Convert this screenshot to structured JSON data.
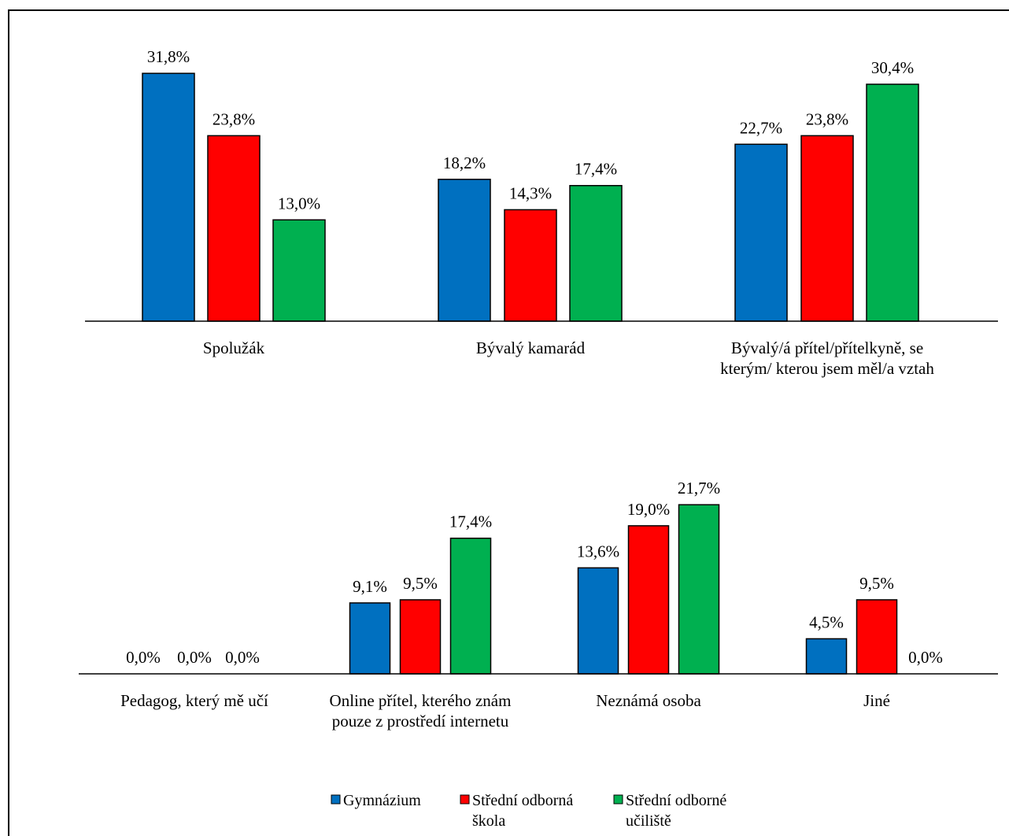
{
  "chart_data": {
    "type": "bar",
    "ylim": [
      0,
      32
    ],
    "legend_position": "bottom",
    "series_names": [
      "Gymnázium",
      "Střední odborná škola",
      "Střední odborné učiliště"
    ],
    "colors": [
      "#0070C0",
      "#FF0000",
      "#00B050"
    ],
    "panels": [
      {
        "categories": [
          "Spolužák",
          "Bývalý kamarád",
          "Bývalý/á přítel/přítelkyně, se kterým/ kterou jsem měl/a vztah"
        ],
        "series": [
          {
            "name": "Gymnázium",
            "values": [
              31.8,
              18.2,
              22.7
            ]
          },
          {
            "name": "Střední odborná škola",
            "values": [
              23.8,
              14.3,
              23.8
            ]
          },
          {
            "name": "Střední odborné učiliště",
            "values": [
              13.0,
              17.4,
              30.4
            ]
          }
        ],
        "data_labels": [
          [
            "31,8%",
            "18,2%",
            "22,7%"
          ],
          [
            "23,8%",
            "14,3%",
            "23,8%"
          ],
          [
            "13,0%",
            "17,4%",
            "30,4%"
          ]
        ]
      },
      {
        "categories": [
          "Pedagog, který mě učí",
          "Online přítel, kterého znám pouze z prostředí internetu",
          "Neznámá osoba",
          "Jiné"
        ],
        "series": [
          {
            "name": "Gymnázium",
            "values": [
              0.0,
              9.1,
              13.6,
              4.5
            ]
          },
          {
            "name": "Střední odborná škola",
            "values": [
              0.0,
              9.5,
              19.0,
              9.5
            ]
          },
          {
            "name": "Střední odborné učiliště",
            "values": [
              0.0,
              17.4,
              21.7,
              0.0
            ]
          }
        ],
        "data_labels": [
          [
            "0,0%",
            "9,1%",
            "13,6%",
            "4,5%"
          ],
          [
            "0,0%",
            "9,5%",
            "19,0%",
            "9,5%"
          ],
          [
            "0,0%",
            "17,4%",
            "21,7%",
            "0,0%"
          ]
        ]
      }
    ]
  }
}
